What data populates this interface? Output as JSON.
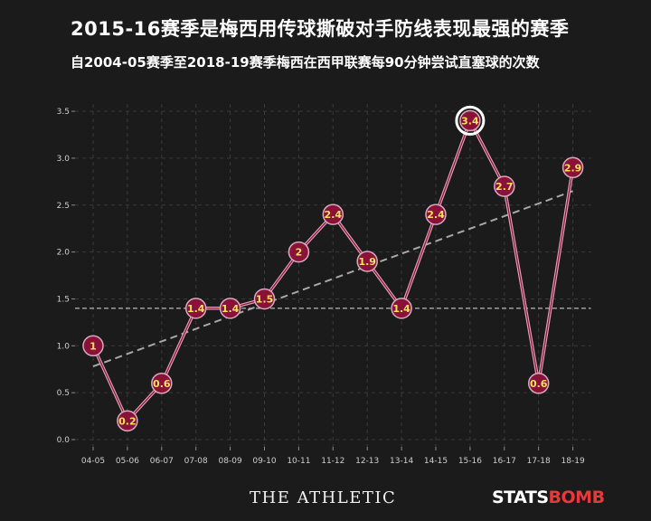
{
  "header": {
    "title": "2015-16赛季是梅西用传球撕破对手防线表现最强的赛季",
    "subtitle": "自2004-05赛季至2018-19赛季梅西在西甲联赛每90分钟尝试直塞球的次数"
  },
  "footer": {
    "publisher_logo": "THE ATHLETIC",
    "provider_logo_part1": "STATS",
    "provider_logo_part2": "BOMB"
  },
  "colors": {
    "background": "#1b1b1b",
    "line": "#e0a0b8",
    "marker_fill": "#8a1238",
    "marker_stroke": "#d6aabf",
    "highlight_stroke": "#ffffff",
    "data_label": "#f5e35a",
    "trend": "#a8a8a8",
    "grid": "#3a3a3a",
    "logo_accent": "#e63a3a"
  },
  "chart_data": {
    "type": "line",
    "categories": [
      "04-05",
      "05-06",
      "06-07",
      "07-08",
      "08-09",
      "09-10",
      "10-11",
      "11-12",
      "12-13",
      "13-14",
      "14-15",
      "15-16",
      "16-17",
      "17-18",
      "18-19"
    ],
    "values": [
      1,
      0.2,
      0.6,
      1.4,
      1.4,
      1.5,
      2,
      2.4,
      1.9,
      1.4,
      2.4,
      3.4,
      2.7,
      0.6,
      2.9
    ],
    "data_labels": [
      "1",
      "0.2",
      "0.6",
      "1.4",
      "1.4",
      "1.5",
      "2",
      "2.4",
      "1.9",
      "1.4",
      "2.4",
      "3.4",
      "2.7",
      "0.6",
      "2.9"
    ],
    "highlight_category": "15-16",
    "ylim": [
      0,
      3.5
    ],
    "yticks": [
      0,
      0.5,
      1,
      1.5,
      2,
      2.5,
      3,
      3.5
    ],
    "ytick_labels": [
      "0.0",
      "0.5",
      "1.0",
      "1.5",
      "2.0",
      "2.5",
      "3.0",
      "3.5"
    ],
    "reference_line": 1.4,
    "trend_line": {
      "start": 0.78,
      "end": 2.65
    },
    "grid": true,
    "xlabel": "",
    "ylabel": ""
  }
}
